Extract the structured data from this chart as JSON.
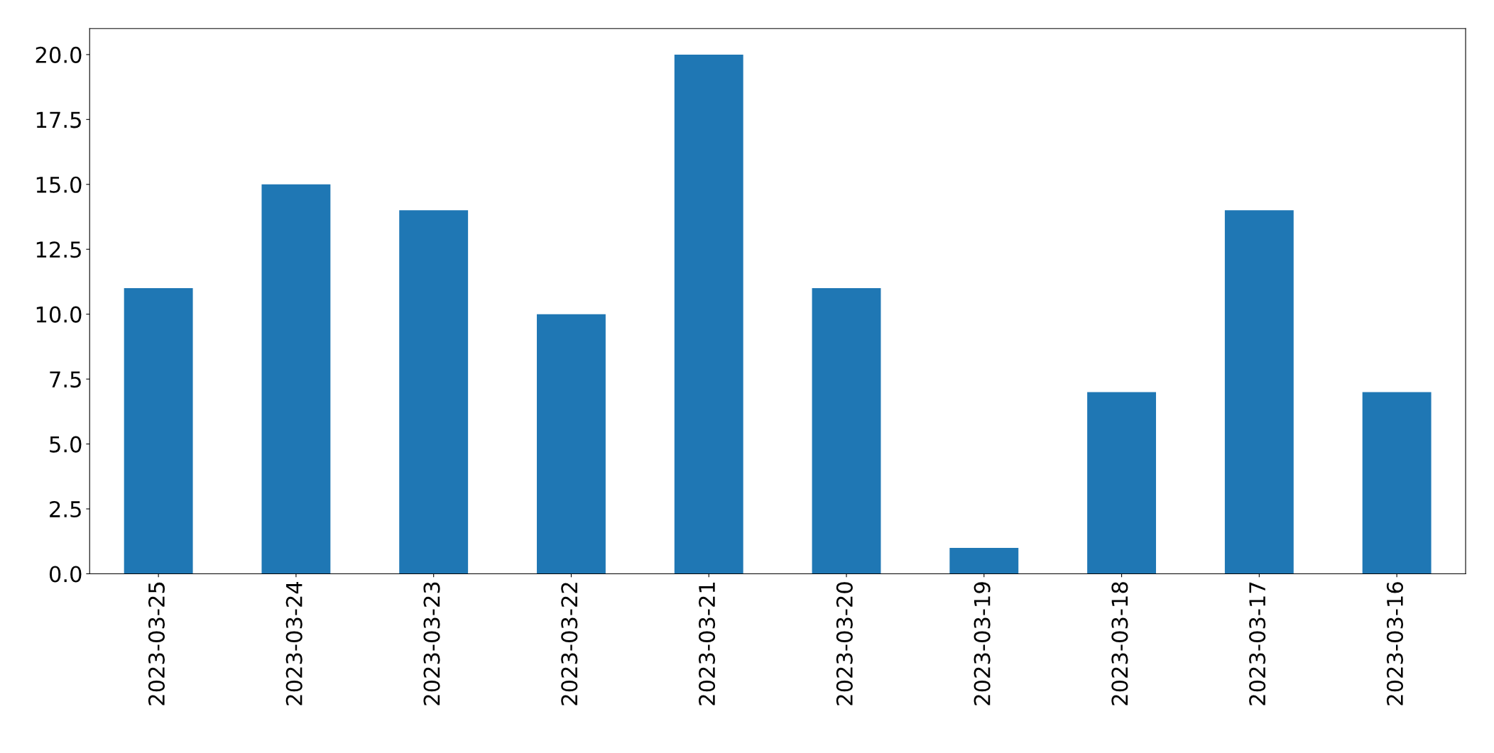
{
  "chart_data": {
    "type": "bar",
    "categories": [
      "2023-03-25",
      "2023-03-24",
      "2023-03-23",
      "2023-03-22",
      "2023-03-21",
      "2023-03-20",
      "2023-03-19",
      "2023-03-18",
      "2023-03-17",
      "2023-03-16"
    ],
    "values": [
      11,
      15,
      14,
      10,
      20,
      11,
      1,
      7,
      14,
      7
    ],
    "color": "#1f77b4",
    "ylim": [
      0,
      21
    ],
    "yticks": [
      {
        "value": 0,
        "label": "0.0"
      },
      {
        "value": 2.5,
        "label": "2.5"
      },
      {
        "value": 5,
        "label": "5.0"
      },
      {
        "value": 7.5,
        "label": "7.5"
      },
      {
        "value": 10,
        "label": "10.0"
      },
      {
        "value": 12.5,
        "label": "12.5"
      },
      {
        "value": 15,
        "label": "15.0"
      },
      {
        "value": 17.5,
        "label": "17.5"
      },
      {
        "value": 20,
        "label": "20.0"
      }
    ],
    "grid": false
  }
}
